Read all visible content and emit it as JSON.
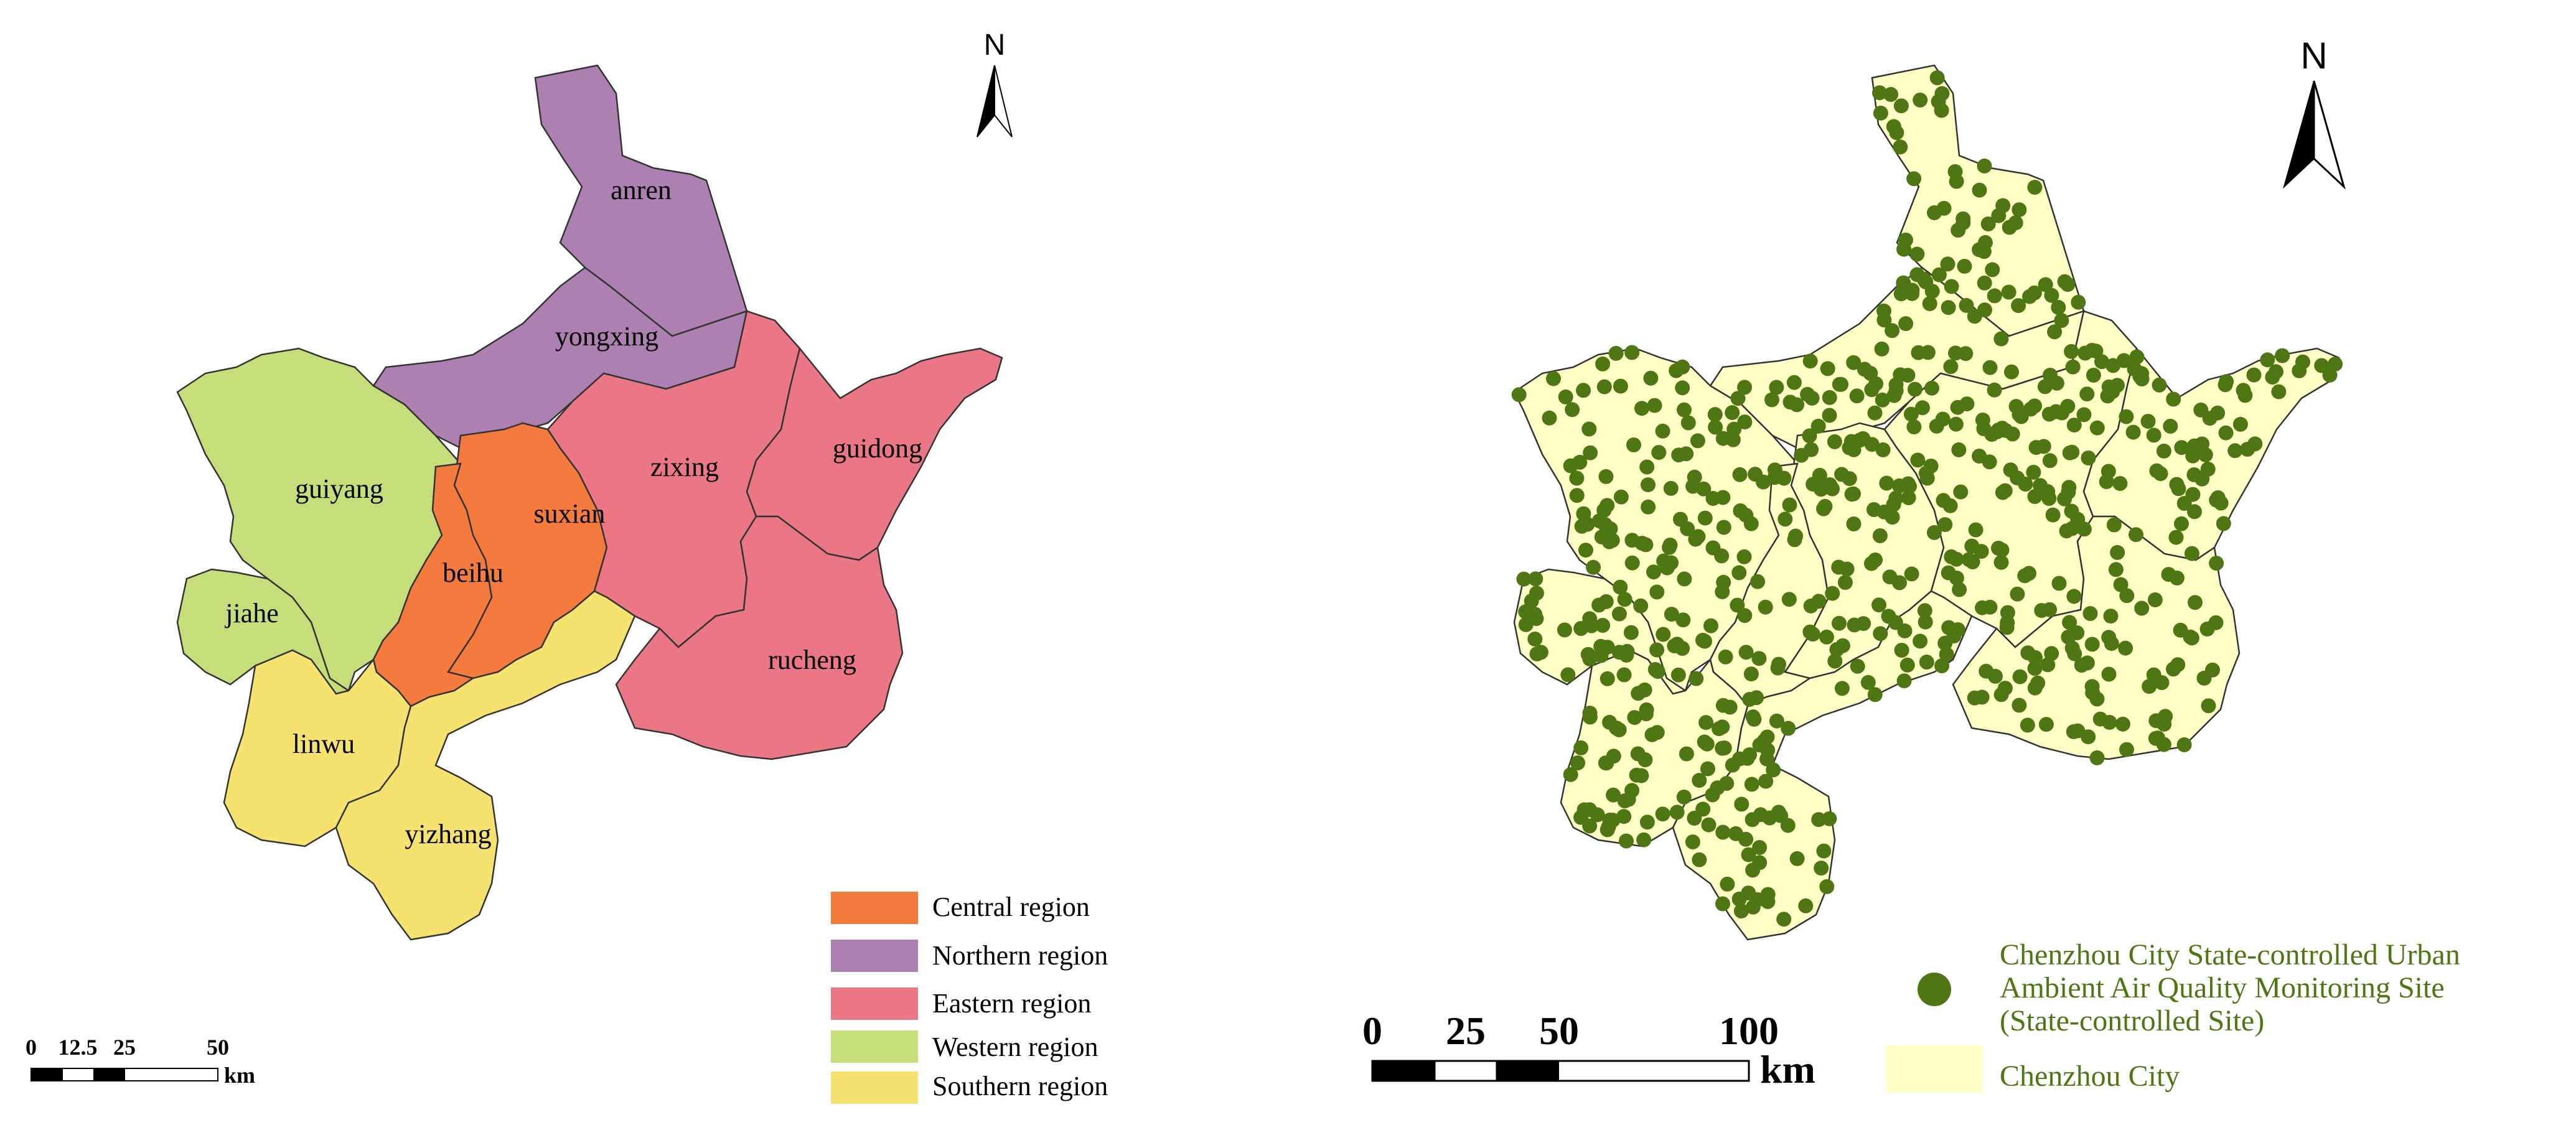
{
  "left_map": {
    "counties": [
      {
        "name": "anren",
        "region": "northern"
      },
      {
        "name": "yongxing",
        "region": "northern"
      },
      {
        "name": "guiyang",
        "region": "western"
      },
      {
        "name": "jiahe",
        "region": "western"
      },
      {
        "name": "suxian",
        "region": "central"
      },
      {
        "name": "beihu",
        "region": "central"
      },
      {
        "name": "zixing",
        "region": "eastern"
      },
      {
        "name": "guidong",
        "region": "eastern"
      },
      {
        "name": "rucheng",
        "region": "eastern"
      },
      {
        "name": "linwu",
        "region": "southern"
      },
      {
        "name": "yizhang",
        "region": "southern"
      }
    ],
    "legend": [
      {
        "label": "Central region",
        "color": "#F47A3E"
      },
      {
        "label": "Northern region",
        "color": "#AD80B2"
      },
      {
        "label": "Eastern region",
        "color": "#EA7686"
      },
      {
        "label": "Western region",
        "color": "#C6DE7A"
      },
      {
        "label": "Southern region",
        "color": "#F6E26F"
      }
    ],
    "scale_bar": {
      "ticks": [
        "0",
        "12.5",
        "25",
        "50"
      ],
      "unit": "km"
    },
    "north_label": "N"
  },
  "right_map": {
    "legend": {
      "site_label": [
        "Chenzhou City State-controlled Urban",
        "Ambient Air Quality Monitoring Site",
        "(State-controlled Site)"
      ],
      "site_color": "#4E7612",
      "city_label": "Chenzhou City",
      "city_color": "#FFFFC6"
    },
    "scale_bar": {
      "ticks": [
        "0",
        "25",
        "50",
        "100"
      ],
      "unit": "km"
    },
    "north_label": "N"
  }
}
